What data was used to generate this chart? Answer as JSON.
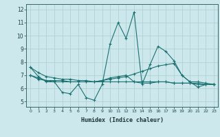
{
  "title": "",
  "xlabel": "Humidex (Indice chaleur)",
  "ylabel": "",
  "background_color": "#cce8ec",
  "grid_color": "#aacccc",
  "line_color": "#1a7070",
  "xlim": [
    -0.5,
    23.5
  ],
  "ylim": [
    4.6,
    12.4
  ],
  "xticks": [
    0,
    1,
    2,
    3,
    4,
    5,
    6,
    7,
    8,
    9,
    10,
    11,
    12,
    13,
    14,
    15,
    16,
    17,
    18,
    19,
    20,
    21,
    22,
    23
  ],
  "yticks": [
    5,
    6,
    7,
    8,
    9,
    10,
    11,
    12
  ],
  "series": [
    {
      "x": [
        0,
        1,
        2,
        3,
        4,
        5,
        6,
        7,
        8,
        9,
        10,
        11,
        12,
        13,
        14,
        15,
        16,
        17,
        18,
        19,
        20,
        21,
        22,
        23
      ],
      "y": [
        7.6,
        6.9,
        6.5,
        6.5,
        5.7,
        5.6,
        6.3,
        5.3,
        5.1,
        6.3,
        9.4,
        11.0,
        9.8,
        11.8,
        6.3,
        7.8,
        9.2,
        8.8,
        8.1,
        7.0,
        6.5,
        6.1,
        6.3,
        6.3
      ]
    },
    {
      "x": [
        0,
        1,
        2,
        3,
        4,
        5,
        6,
        7,
        8,
        9,
        10,
        11,
        12,
        13,
        14,
        15,
        16,
        17,
        18,
        19,
        20,
        21,
        22,
        23
      ],
      "y": [
        7.0,
        6.7,
        6.6,
        6.6,
        6.6,
        6.5,
        6.5,
        6.5,
        6.5,
        6.6,
        6.7,
        6.8,
        6.9,
        7.1,
        7.3,
        7.5,
        7.7,
        7.8,
        7.9,
        7.0,
        6.5,
        6.5,
        6.4,
        6.3
      ]
    },
    {
      "x": [
        0,
        1,
        2,
        3,
        4,
        5,
        6,
        7,
        8,
        9,
        10,
        11,
        12,
        13,
        14,
        15,
        16,
        17,
        18,
        19,
        20,
        21,
        22,
        23
      ],
      "y": [
        7.0,
        6.8,
        6.6,
        6.5,
        6.5,
        6.5,
        6.5,
        6.5,
        6.5,
        6.6,
        6.8,
        6.9,
        7.0,
        6.5,
        6.4,
        6.4,
        6.5,
        6.5,
        6.4,
        6.4,
        6.4,
        6.4,
        6.3,
        6.3
      ]
    },
    {
      "x": [
        0,
        1,
        2,
        3,
        4,
        5,
        6,
        7,
        8,
        9,
        10,
        11,
        12,
        13,
        14,
        15,
        16,
        17,
        18,
        19,
        20,
        21,
        22,
        23
      ],
      "y": [
        7.6,
        7.2,
        6.9,
        6.8,
        6.7,
        6.7,
        6.6,
        6.6,
        6.5,
        6.5,
        6.5,
        6.5,
        6.5,
        6.5,
        6.5,
        6.5,
        6.5,
        6.5,
        6.4,
        6.4,
        6.4,
        6.3,
        6.3,
        6.3
      ]
    }
  ]
}
